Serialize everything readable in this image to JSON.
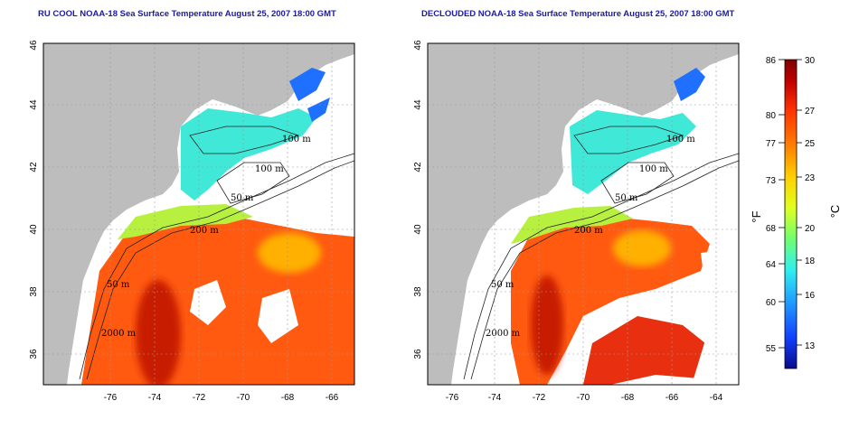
{
  "titles": {
    "left": "RU COOL NOAA-18 Sea Surface Temperature August 25, 2007 18:00 GMT",
    "right": "DECLOUDED NOAA-18 Sea Surface Temperature August 25, 2007 18:00 GMT"
  },
  "axes": {
    "lon_ticks": [
      "-76",
      "-74",
      "-72",
      "-70",
      "-68",
      "-66",
      "-64"
    ],
    "lat_ticks": [
      "36",
      "38",
      "40",
      "42",
      "44",
      "46"
    ]
  },
  "contour_labels": [
    "100 m",
    "100 m",
    "50 m",
    "200 m",
    "50 m",
    "2000 m"
  ],
  "colorbar": {
    "fahrenheit_ticks": [
      "86",
      "80",
      "77",
      "73",
      "68",
      "64",
      "60",
      "55"
    ],
    "celsius_ticks": [
      "30",
      "27",
      "25",
      "23",
      "20",
      "18",
      "16",
      "13"
    ],
    "f_unit": "°F",
    "c_unit": "°C",
    "colors": [
      "#0a0a8c",
      "#1040ff",
      "#20a0ff",
      "#30f0f0",
      "#70ff70",
      "#e0ff20",
      "#ffd000",
      "#ff8000",
      "#ff3000",
      "#c00000",
      "#800000"
    ]
  },
  "colors": {
    "land": "#bdbdbd",
    "ocean_bg": "#ffffff",
    "title": "#1a1aa6"
  }
}
